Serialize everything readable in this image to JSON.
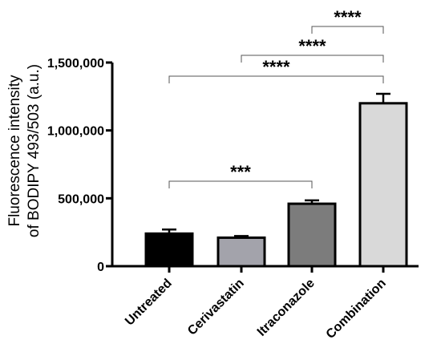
{
  "chart_data": {
    "type": "bar",
    "ylabel": [
      "Fluorescence intensity",
      "of BODIPY 493/503 (a.u.)"
    ],
    "categories": [
      "Untreated",
      "Cerivastatin",
      "Itraconazole",
      "Combination"
    ],
    "values": [
      240000,
      210000,
      460000,
      1200000
    ],
    "errors": [
      30000,
      12000,
      25000,
      70000
    ],
    "colors": [
      "#000000",
      "#a3a3ab",
      "#7c7c7c",
      "#d9d9d9"
    ],
    "ylim": [
      0,
      1500000
    ],
    "yticks": [
      0,
      500000,
      1000000,
      1500000
    ],
    "ytick_labels": [
      "0",
      "500,000",
      "1,000,000",
      "1,500,000"
    ],
    "significance": [
      {
        "from": 0,
        "to": 2,
        "label": "***",
        "level": 0
      },
      {
        "from": 0,
        "to": 3,
        "label": "****",
        "level": 1
      },
      {
        "from": 1,
        "to": 3,
        "label": "****",
        "level": 2
      },
      {
        "from": 2,
        "to": 3,
        "label": "****",
        "level": 3
      }
    ]
  }
}
